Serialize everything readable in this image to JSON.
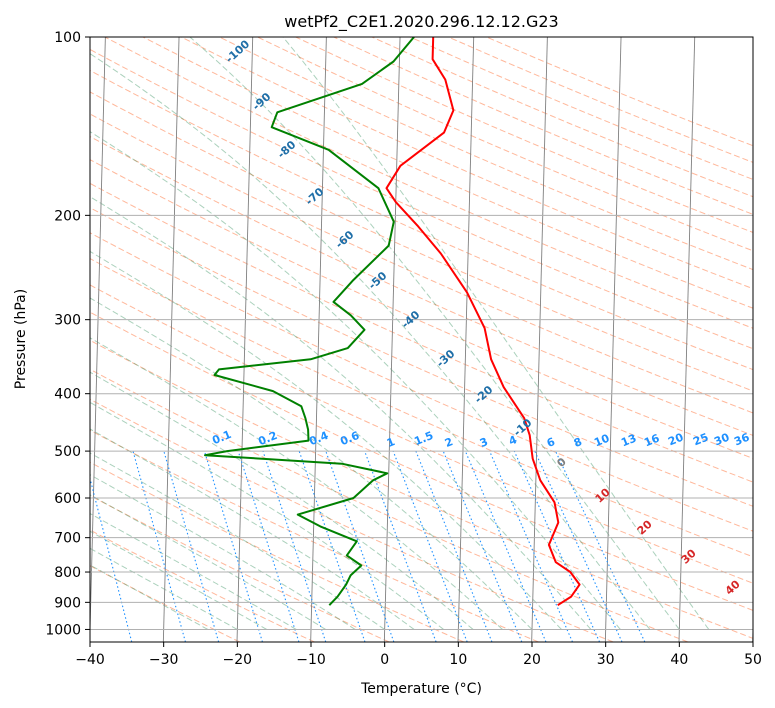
{
  "colors": {
    "temperature": "#ff0000",
    "dewpoint": "#008000",
    "dry_adiabat": "#ffa07a",
    "moist_adiabat": "#2e8b57",
    "mixing_ratio": "#1e90ff",
    "isotherm": "#808080",
    "isohume_label": "#1f6fa8",
    "isotherm_label": "#d62728",
    "zero_isotherm_label": "#808080"
  },
  "chart_data": {
    "type": "line",
    "title": "wetPf2_C2E1.2020.296.12.12.G23",
    "xlabel": "Temperature (°C)",
    "ylabel": "Pressure (hPa)",
    "xlim": [
      -40,
      50
    ],
    "ylim": [
      1050,
      100
    ],
    "y_scale": "log",
    "grid": true,
    "x_ticks": [
      -40,
      -30,
      -20,
      -10,
      0,
      10,
      20,
      30,
      40,
      50
    ],
    "x_tick_labels": [
      "−40",
      "−30",
      "−20",
      "−10",
      "0",
      "10",
      "20",
      "30",
      "40",
      "50"
    ],
    "y_ticks": [
      100,
      200,
      300,
      400,
      500,
      600,
      700,
      800,
      900,
      1000
    ],
    "y_tick_labels": [
      "100",
      "200",
      "300",
      "400",
      "500",
      "600",
      "700",
      "800",
      "900",
      "1000"
    ],
    "series": [
      {
        "key": "temperature",
        "points": [
          [
            23.4,
            910
          ],
          [
            25.2,
            880
          ],
          [
            26.3,
            840
          ],
          [
            25.0,
            800
          ],
          [
            23.0,
            770
          ],
          [
            22.0,
            720
          ],
          [
            23.2,
            660
          ],
          [
            22.6,
            610
          ],
          [
            20.6,
            560
          ],
          [
            19.5,
            515
          ],
          [
            19.0,
            470
          ],
          [
            18.2,
            440
          ],
          [
            15.3,
            390
          ],
          [
            13.5,
            350
          ],
          [
            12.5,
            310
          ],
          [
            10.0,
            270
          ],
          [
            6.3,
            232
          ],
          [
            3.0,
            208
          ],
          [
            0.0,
            190
          ],
          [
            -1.3,
            180
          ],
          [
            0.5,
            165
          ],
          [
            6.3,
            145
          ],
          [
            7.5,
            133
          ],
          [
            6.3,
            118
          ],
          [
            4.5,
            109
          ],
          [
            4.5,
            100
          ]
        ]
      },
      {
        "key": "dewpoint",
        "points": [
          [
            -7.6,
            910
          ],
          [
            -6.5,
            880
          ],
          [
            -5.4,
            840
          ],
          [
            -4.8,
            810
          ],
          [
            -3.4,
            780
          ],
          [
            -5.4,
            750
          ],
          [
            -4.1,
            710
          ],
          [
            -9.1,
            670
          ],
          [
            -12.2,
            640
          ],
          [
            -4.7,
            600
          ],
          [
            -2.1,
            560
          ],
          [
            -0.2,
            545
          ],
          [
            -6.4,
            525
          ],
          [
            -25.0,
            508
          ],
          [
            -22.0,
            500
          ],
          [
            -11.0,
            480
          ],
          [
            -11.1,
            460
          ],
          [
            -11.5,
            440
          ],
          [
            -12.1,
            420
          ],
          [
            -16.0,
            396
          ],
          [
            -24.0,
            372
          ],
          [
            -23.4,
            364
          ],
          [
            -11.0,
            350
          ],
          [
            -6.0,
            335
          ],
          [
            -3.8,
            312
          ],
          [
            -5.7,
            295
          ],
          [
            -8.1,
            280
          ],
          [
            -5.6,
            258
          ],
          [
            -0.8,
            225
          ],
          [
            -0.2,
            205
          ],
          [
            -2.4,
            180
          ],
          [
            -9.3,
            155
          ],
          [
            -17.1,
            142
          ],
          [
            -16.4,
            134
          ],
          [
            -5.0,
            120
          ],
          [
            -0.8,
            110
          ],
          [
            1.9,
            100
          ]
        ]
      }
    ],
    "mixing_ratio_labels": [
      "0.1",
      "0.2",
      "0.4",
      "0.6",
      "1",
      "1.5",
      "2",
      "3",
      "4",
      "6",
      "8",
      "10",
      "13",
      "16",
      "20",
      "25",
      "30",
      "36"
    ],
    "mixing_ratio_values": [
      0.1,
      0.2,
      0.4,
      0.6,
      1,
      1.5,
      2,
      3,
      4,
      6,
      8,
      10,
      13,
      16,
      20,
      25,
      30,
      36
    ],
    "upper_isotherm_labels": [
      "-100",
      "-90",
      "-80",
      "-70",
      "-60",
      "-50",
      "-40",
      "-30",
      "-20",
      "-10"
    ],
    "lower_isotherm_labels": [
      "0",
      "10",
      "20",
      "30",
      "40"
    ]
  }
}
